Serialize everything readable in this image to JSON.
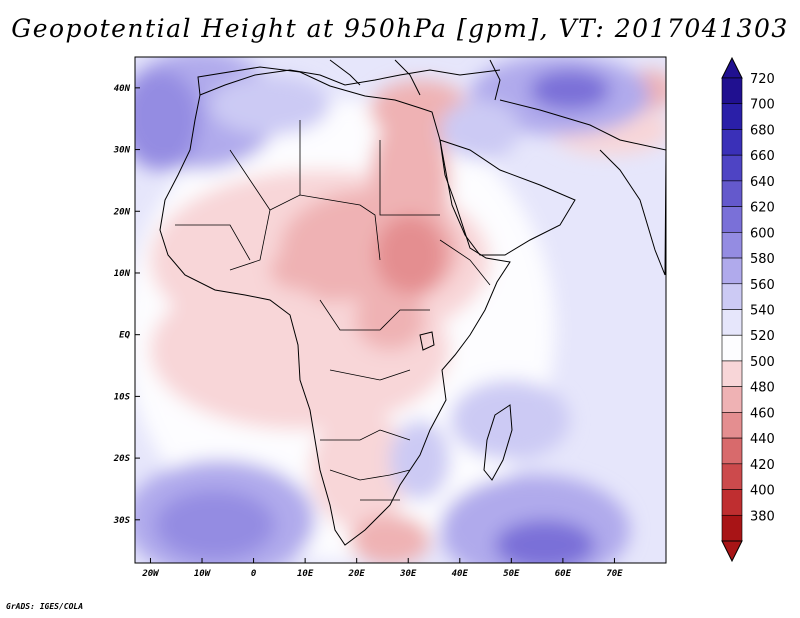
{
  "title": "Geopotential Height at 950hPa [gpm], VT: 2017041303",
  "credit": "GrADS: IGES/COLA",
  "map": {
    "lon_range": [
      -23,
      80
    ],
    "lat_range": [
      -37,
      45
    ],
    "lon_ticks": [
      {
        "value": -20,
        "label": "20W"
      },
      {
        "value": -10,
        "label": "10W"
      },
      {
        "value": 0,
        "label": "0"
      },
      {
        "value": 10,
        "label": "10E"
      },
      {
        "value": 20,
        "label": "20E"
      },
      {
        "value": 30,
        "label": "30E"
      },
      {
        "value": 40,
        "label": "40E"
      },
      {
        "value": 50,
        "label": "50E"
      },
      {
        "value": 60,
        "label": "60E"
      },
      {
        "value": 70,
        "label": "70E"
      }
    ],
    "lat_ticks": [
      {
        "value": 40,
        "label": "40N"
      },
      {
        "value": 30,
        "label": "30N"
      },
      {
        "value": 20,
        "label": "20N"
      },
      {
        "value": 10,
        "label": "10N"
      },
      {
        "value": 0,
        "label": "EQ"
      },
      {
        "value": -10,
        "label": "10S"
      },
      {
        "value": -20,
        "label": "20S"
      },
      {
        "value": -30,
        "label": "30S"
      }
    ]
  },
  "colorbar": {
    "levels": [
      "720",
      "700",
      "680",
      "660",
      "640",
      "620",
      "600",
      "580",
      "560",
      "540",
      "520",
      "500",
      "480",
      "460",
      "440",
      "420",
      "400",
      "380"
    ],
    "colors": [
      "#201090",
      "#2a1fa8",
      "#3a30b8",
      "#4e44c4",
      "#6459cc",
      "#7a70d8",
      "#948ce2",
      "#b0aaec",
      "#cccaf4",
      "#e6e6fb",
      "#fdfdff",
      "#f8d6d8",
      "#efb2b4",
      "#e48e90",
      "#d86a6c",
      "#cc4a4c",
      "#bf2e30",
      "#a81416"
    ]
  }
}
